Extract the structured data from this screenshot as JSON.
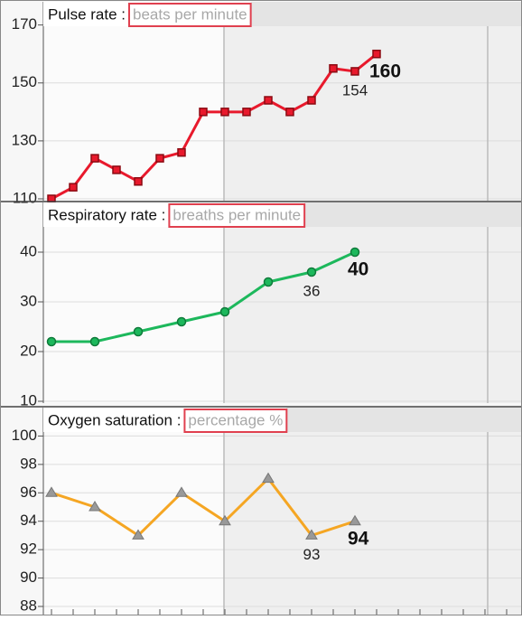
{
  "chart_data": [
    {
      "type": "line",
      "title": "Pulse rate :",
      "subtitle": "beats per minute",
      "categories": [
        null,
        null,
        null,
        null,
        null,
        null,
        null,
        null,
        null,
        null,
        null,
        null,
        null,
        null,
        null,
        null
      ],
      "series": [
        {
          "name": "Pulse rate",
          "color": "#e8192c",
          "marker": "square",
          "marker_color": "#8b0a12",
          "values": [
            110,
            114,
            124,
            120,
            116,
            124,
            126,
            140,
            140,
            140,
            144,
            140,
            144,
            155,
            154,
            160
          ],
          "value_labels": [
            null,
            null,
            null,
            null,
            null,
            null,
            null,
            null,
            null,
            null,
            null,
            null,
            null,
            null,
            "154",
            "160"
          ]
        }
      ],
      "ylim": [
        110,
        178
      ],
      "yticks": [
        110,
        130,
        150,
        170
      ],
      "grid": true
    },
    {
      "type": "line",
      "title": "Respiratory rate :",
      "subtitle": "breaths per minute",
      "categories": [
        null,
        null,
        null,
        null,
        null,
        null,
        null,
        null
      ],
      "series": [
        {
          "name": "Respiratory rate",
          "color": "#1db85c",
          "marker": "circle",
          "marker_color": "#0f7a3a",
          "values": [
            22,
            22,
            24,
            26,
            28,
            34,
            36,
            40
          ],
          "value_labels": [
            null,
            null,
            null,
            null,
            null,
            null,
            "36",
            "40"
          ]
        }
      ],
      "ylim": [
        10,
        50
      ],
      "yticks": [
        10,
        20,
        30,
        40
      ],
      "grid": true
    },
    {
      "type": "line",
      "title": "Oxygen saturation :",
      "subtitle": "percentage %",
      "categories": [
        null,
        null,
        null,
        null,
        null,
        null,
        null,
        null
      ],
      "series": [
        {
          "name": "Oxygen saturation",
          "color": "#f5a623",
          "marker": "triangle",
          "marker_color": "#999999",
          "values": [
            96,
            95,
            93,
            96,
            94,
            97,
            93,
            94
          ],
          "value_labels": [
            null,
            null,
            null,
            null,
            null,
            null,
            "93",
            "94"
          ]
        }
      ],
      "ylim": [
        88,
        102
      ],
      "yticks": [
        88,
        90,
        92,
        94,
        96,
        98,
        100
      ],
      "grid": true
    }
  ]
}
